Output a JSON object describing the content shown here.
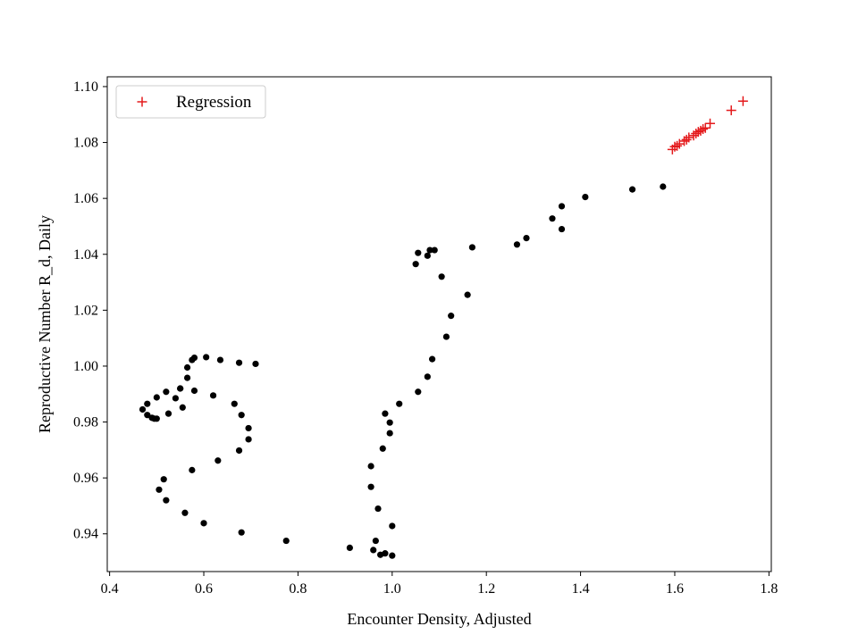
{
  "chart_data": {
    "type": "scatter",
    "title": "",
    "xlabel": "Encounter Density, Adjusted",
    "ylabel": "Reproductive Number R_d, Daily",
    "xlim": [
      0.395,
      1.805
    ],
    "ylim": [
      0.9265,
      1.1035
    ],
    "xticks": [
      0.4,
      0.6,
      0.8,
      1.0,
      1.2,
      1.4,
      1.6,
      1.8
    ],
    "xtick_labels": [
      "0.4",
      "0.6",
      "0.8",
      "1.0",
      "1.2",
      "1.4",
      "1.6",
      "1.8"
    ],
    "yticks": [
      0.94,
      0.96,
      0.98,
      1.0,
      1.02,
      1.04,
      1.06,
      1.08,
      1.1
    ],
    "ytick_labels": [
      "0.94",
      "0.96",
      "0.98",
      "1.00",
      "1.02",
      "1.04",
      "1.06",
      "1.08",
      "1.10"
    ],
    "grid": false,
    "legend_placement": "top-left",
    "colors": {
      "observed": "#000000",
      "regression": "#e41a1c"
    },
    "series": [
      {
        "marker": "dot",
        "points": [
          [
            0.47,
            0.9845
          ],
          [
            0.48,
            0.9825
          ],
          [
            0.48,
            0.9865
          ],
          [
            0.49,
            0.9815
          ],
          [
            0.495,
            0.9812
          ],
          [
            0.5,
            0.9812
          ],
          [
            0.5,
            0.9888
          ],
          [
            0.505,
            0.9558
          ],
          [
            0.515,
            0.9595
          ],
          [
            0.52,
            0.9908
          ],
          [
            0.52,
            0.952
          ],
          [
            0.525,
            0.983
          ],
          [
            0.54,
            0.9885
          ],
          [
            0.55,
            0.992
          ],
          [
            0.55,
            0.992
          ],
          [
            0.555,
            0.9852
          ],
          [
            0.56,
            0.9475
          ],
          [
            0.565,
            0.9958
          ],
          [
            0.565,
            0.9995
          ],
          [
            0.575,
            0.9628
          ],
          [
            0.575,
            1.0022
          ],
          [
            0.58,
            1.003
          ],
          [
            0.58,
            0.9912
          ],
          [
            0.6,
            0.9438
          ],
          [
            0.605,
            1.0032
          ],
          [
            0.62,
            0.9895
          ],
          [
            0.63,
            0.9662
          ],
          [
            0.635,
            1.0022
          ],
          [
            0.665,
            0.9865
          ],
          [
            0.675,
            0.9698
          ],
          [
            0.675,
            1.0012
          ],
          [
            0.68,
            0.9405
          ],
          [
            0.68,
            0.9825
          ],
          [
            0.695,
            0.9778
          ],
          [
            0.695,
            0.9738
          ],
          [
            0.71,
            1.0008
          ],
          [
            0.775,
            0.9375
          ],
          [
            0.91,
            0.935
          ],
          [
            0.955,
            0.9642
          ],
          [
            0.955,
            0.9568
          ],
          [
            0.96,
            0.9342
          ],
          [
            0.965,
            0.9375
          ],
          [
            0.97,
            0.949
          ],
          [
            0.975,
            0.9325
          ],
          [
            0.98,
            0.9705
          ],
          [
            0.985,
            0.933
          ],
          [
            0.985,
            0.983
          ],
          [
            0.995,
            0.9798
          ],
          [
            0.995,
            0.976
          ],
          [
            1.0,
            0.9322
          ],
          [
            1.0,
            0.9428
          ],
          [
            1.015,
            0.9865
          ],
          [
            1.05,
            1.0365
          ],
          [
            1.055,
            1.0405
          ],
          [
            1.055,
            0.9908
          ],
          [
            1.075,
            1.0395
          ],
          [
            1.075,
            0.9962
          ],
          [
            1.08,
            1.0415
          ],
          [
            1.085,
            1.0025
          ],
          [
            1.09,
            1.0415
          ],
          [
            1.105,
            1.032
          ],
          [
            1.115,
            1.0105
          ],
          [
            1.125,
            1.018
          ],
          [
            1.16,
            1.0255
          ],
          [
            1.17,
            1.0425
          ],
          [
            1.265,
            1.0435
          ],
          [
            1.285,
            1.0458
          ],
          [
            1.34,
            1.0528
          ],
          [
            1.36,
            1.0572
          ],
          [
            1.36,
            1.049
          ],
          [
            1.41,
            1.0605
          ],
          [
            1.51,
            1.0632
          ],
          [
            1.575,
            1.0642
          ]
        ]
      },
      {
        "name": "Regression",
        "marker": "plus",
        "points": [
          [
            1.595,
            1.0775
          ],
          [
            1.6,
            1.0785
          ],
          [
            1.605,
            1.0788
          ],
          [
            1.61,
            1.0795
          ],
          [
            1.62,
            1.0805
          ],
          [
            1.625,
            1.081
          ],
          [
            1.63,
            1.0818
          ],
          [
            1.64,
            1.0825
          ],
          [
            1.645,
            1.0832
          ],
          [
            1.65,
            1.0838
          ],
          [
            1.655,
            1.0842
          ],
          [
            1.66,
            1.0848
          ],
          [
            1.665,
            1.0852
          ],
          [
            1.675,
            1.0868
          ],
          [
            1.72,
            1.0915
          ],
          [
            1.745,
            1.0948
          ]
        ]
      }
    ]
  }
}
